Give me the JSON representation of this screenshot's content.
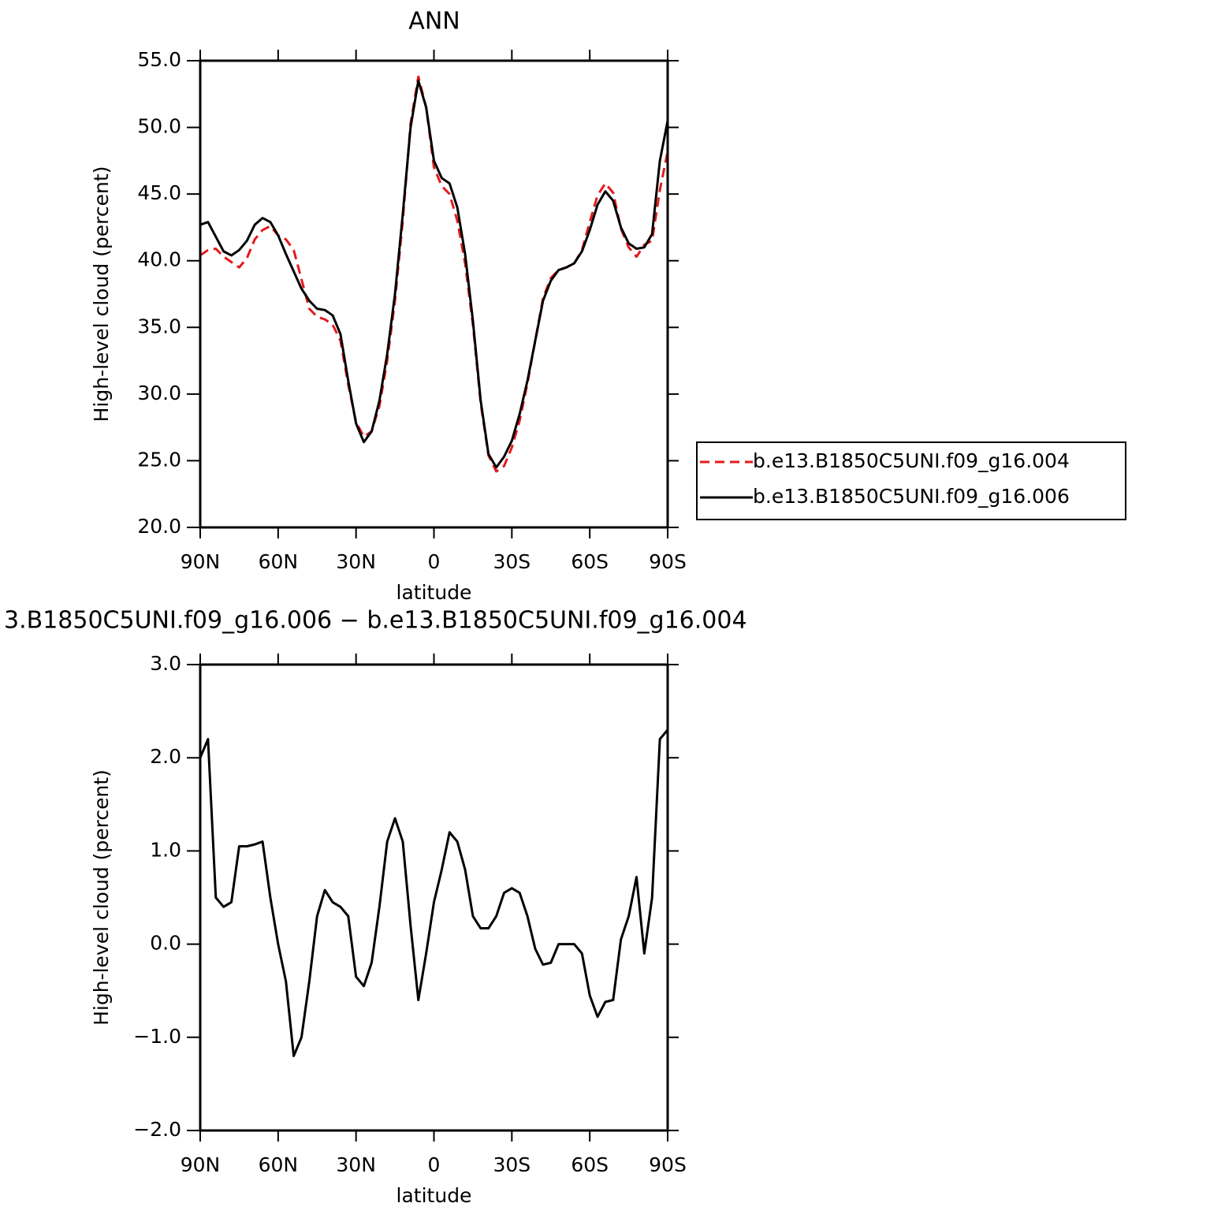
{
  "chart_data": [
    {
      "type": "line",
      "title": "ANN",
      "xlabel": "latitude",
      "ylabel": "High-level cloud (percent)",
      "xlim": [
        90,
        -90
      ],
      "ylim": [
        20,
        55
      ],
      "xticks": [
        {
          "value": 90,
          "label": "90N"
        },
        {
          "value": 60,
          "label": "60N"
        },
        {
          "value": 30,
          "label": "30N"
        },
        0,
        {
          "value": -30,
          "label": "30S"
        },
        {
          "value": -60,
          "label": "60S"
        },
        {
          "value": -90,
          "label": "90S"
        }
      ],
      "yticks": [
        {
          "value": 20,
          "label": "20.0"
        },
        {
          "value": 25,
          "label": "25.0"
        },
        {
          "value": 30,
          "label": "30.0"
        },
        {
          "value": 35,
          "label": "35.0"
        },
        {
          "value": 40,
          "label": "40.0"
        },
        {
          "value": 45,
          "label": "45.0"
        },
        {
          "value": 50,
          "label": "50.0"
        },
        {
          "value": 55,
          "label": "55.0"
        }
      ],
      "legend": "right",
      "x": [
        90,
        87,
        84,
        81,
        78,
        75,
        72,
        69,
        66,
        63,
        60,
        57,
        54,
        51,
        48,
        45,
        42,
        39,
        36,
        33,
        30,
        27,
        24,
        21,
        18,
        15,
        12,
        9,
        6,
        3,
        0,
        -3,
        -6,
        -9,
        -12,
        -15,
        -18,
        -21,
        -24,
        -27,
        -30,
        -33,
        -36,
        -39,
        -42,
        -45,
        -48,
        -51,
        -54,
        -57,
        -60,
        -63,
        -66,
        -69,
        -72,
        -75,
        -78,
        -81,
        -84,
        -87,
        -90
      ],
      "series": [
        {
          "name": "b.e13.B1850C5UNI.f09_g16.004",
          "color": "#e41a1c",
          "linestyle": "dashed",
          "values": [
            40.4,
            40.8,
            40.9,
            40.3,
            39.9,
            39.5,
            40.2,
            41.6,
            42.3,
            42.6,
            41.9,
            41.6,
            40.8,
            38.6,
            36.4,
            35.8,
            35.6,
            35.2,
            34.0,
            30.7,
            27.9,
            26.8,
            27.2,
            29.1,
            32.5,
            37.0,
            43.0,
            50.3,
            53.8,
            51.5,
            47.0,
            45.6,
            45.0,
            43.0,
            39.8,
            35.2,
            29.3,
            25.4,
            24.2,
            24.6,
            26.0,
            28.0,
            30.8,
            34.0,
            37.2,
            38.7,
            39.3,
            39.5,
            39.8,
            40.8,
            42.9,
            44.9,
            45.8,
            45.1,
            42.4,
            41.0,
            40.3,
            41.2,
            41.5,
            45.3,
            48.2
          ]
        },
        {
          "name": "b.e13.B1850C5UNI.f09_g16.006",
          "color": "#000000",
          "linestyle": "solid",
          "values": [
            42.7,
            42.9,
            41.8,
            40.7,
            40.4,
            40.8,
            41.5,
            42.7,
            43.2,
            42.9,
            41.9,
            40.5,
            39.2,
            37.9,
            37.0,
            36.4,
            36.3,
            35.9,
            34.5,
            31.0,
            27.8,
            26.4,
            27.2,
            29.5,
            33.0,
            37.5,
            43.5,
            50.0,
            53.5,
            51.5,
            47.5,
            46.2,
            45.8,
            44.0,
            40.5,
            35.5,
            29.5,
            25.5,
            24.5,
            25.3,
            26.5,
            28.5,
            31.0,
            34.0,
            37.0,
            38.5,
            39.3,
            39.5,
            39.8,
            40.7,
            42.3,
            44.2,
            45.2,
            44.5,
            42.5,
            41.3,
            40.9,
            41.0,
            42.0,
            47.5,
            50.5
          ]
        }
      ]
    },
    {
      "type": "line",
      "title": "3.B1850C5UNI.f09_g16.006 − b.e13.B1850C5UNI.f09_g16.004",
      "xlabel": "latitude",
      "ylabel": "High-level cloud (percent)",
      "xlim": [
        90,
        -90
      ],
      "ylim": [
        -2,
        3
      ],
      "xticks": [
        {
          "value": 90,
          "label": "90N"
        },
        {
          "value": 60,
          "label": "60N"
        },
        {
          "value": 30,
          "label": "30N"
        },
        0,
        {
          "value": -30,
          "label": "30S"
        },
        {
          "value": -60,
          "label": "60S"
        },
        {
          "value": -90,
          "label": "90S"
        }
      ],
      "yticks": [
        {
          "value": -2,
          "label": "−2.0"
        },
        {
          "value": -1,
          "label": "−1.0"
        },
        {
          "value": 0,
          "label": "0.0"
        },
        {
          "value": 1,
          "label": "1.0"
        },
        {
          "value": 2,
          "label": "2.0"
        },
        {
          "value": 3,
          "label": "3.0"
        }
      ],
      "x": [
        90,
        87,
        84,
        81,
        78,
        75,
        72,
        69,
        66,
        63,
        60,
        57,
        54,
        51,
        48,
        45,
        42,
        39,
        36,
        33,
        30,
        27,
        24,
        21,
        18,
        15,
        12,
        9,
        6,
        3,
        0,
        -3,
        -6,
        -9,
        -12,
        -15,
        -18,
        -21,
        -24,
        -27,
        -30,
        -33,
        -36,
        -39,
        -42,
        -45,
        -48,
        -51,
        -54,
        -57,
        -60,
        -63,
        -66,
        -69,
        -72,
        -75,
        -78,
        -81,
        -84,
        -87,
        -90
      ],
      "series": [
        {
          "color": "#000000",
          "linestyle": "solid",
          "values": [
            2.0,
            2.2,
            0.5,
            0.4,
            0.45,
            1.05,
            1.05,
            1.07,
            1.1,
            0.5,
            0.0,
            -0.4,
            -1.2,
            -1.0,
            -0.4,
            0.3,
            0.58,
            0.45,
            0.4,
            0.3,
            -0.35,
            -0.45,
            -0.2,
            0.4,
            1.1,
            1.35,
            1.1,
            0.2,
            -0.6,
            -0.1,
            0.45,
            0.8,
            1.2,
            1.1,
            0.8,
            0.3,
            0.17,
            0.17,
            0.3,
            0.55,
            0.6,
            0.55,
            0.3,
            -0.05,
            -0.22,
            -0.2,
            0.0,
            0.0,
            0.0,
            -0.1,
            -0.55,
            -0.78,
            -0.62,
            -0.6,
            0.05,
            0.3,
            0.72,
            -0.1,
            0.5,
            2.2,
            2.3
          ]
        }
      ]
    }
  ]
}
